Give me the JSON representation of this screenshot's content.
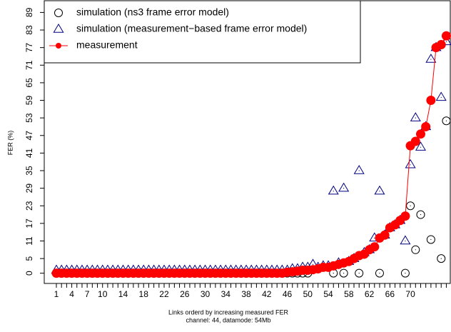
{
  "chart_data": {
    "type": "scatter",
    "xlabel": "Links orderd by increasing measured FER",
    "subtitle": "channel: 44, datamode: 54Mb",
    "ylabel": "FER (%)",
    "categories": [
      "1",
      null,
      null,
      "4",
      null,
      null,
      "7",
      null,
      null,
      "10",
      null,
      null,
      null,
      "14",
      null,
      null,
      null,
      "18",
      null,
      null,
      null,
      "22",
      null,
      null,
      null,
      "26",
      null,
      null,
      null,
      "30",
      null,
      null,
      null,
      "34",
      null,
      null,
      null,
      "38",
      null,
      null,
      null,
      "42",
      null,
      null,
      null,
      "46",
      null,
      null,
      null,
      "50",
      null,
      null,
      null,
      "54",
      null,
      null,
      null,
      "58",
      null,
      null,
      null,
      "62",
      null,
      null,
      null,
      "66",
      null,
      null,
      null,
      "70",
      null,
      null,
      null,
      null,
      null,
      null,
      null
    ],
    "ylim": [
      -3.5,
      93
    ],
    "yticks": [
      0,
      5,
      11,
      17,
      23,
      29,
      35,
      41,
      47,
      53,
      59,
      65,
      71,
      77,
      83,
      89
    ],
    "legend": "topleft",
    "series": [
      {
        "name": "simulation (ns3 frame error model)",
        "color": "#000000",
        "marker": "circle",
        "values": [
          0,
          0,
          0,
          0,
          0,
          0,
          0,
          0,
          0,
          0,
          0,
          0,
          0,
          0,
          0,
          0,
          0,
          0,
          0,
          0,
          0,
          0,
          0,
          0,
          0,
          0,
          0,
          0,
          0,
          0,
          0,
          0,
          0,
          0,
          0,
          0,
          0,
          0,
          0,
          0,
          0,
          0,
          0,
          0,
          0,
          0,
          0,
          0,
          0,
          0,
          1.2,
          1.5,
          2,
          2,
          0,
          3,
          0,
          4,
          5,
          0,
          6.5,
          8,
          9,
          0,
          13,
          15.5,
          16.5,
          18,
          0,
          23,
          8,
          20,
          50,
          11.5,
          77,
          5,
          52
        ]
      },
      {
        "name": "simulation (measurement−based frame error model)",
        "color": "#000080",
        "marker": "triangle",
        "values": [
          1,
          1,
          1,
          1,
          1,
          1,
          1,
          1,
          1,
          1,
          1,
          1,
          1,
          1,
          1,
          1,
          1,
          1,
          1,
          1,
          1,
          1,
          1,
          1,
          1,
          1,
          1,
          1,
          1,
          1,
          1,
          1,
          1,
          1,
          1,
          1,
          1,
          1,
          1,
          1,
          1,
          1,
          1,
          1,
          1,
          1,
          1.5,
          1.5,
          2,
          2,
          3,
          2,
          2.5,
          2.5,
          28,
          3.5,
          29,
          4,
          5,
          35,
          7,
          8,
          12,
          28,
          13,
          15.5,
          16.5,
          18,
          11,
          37,
          53,
          43,
          50,
          73,
          77,
          60,
          79
        ]
      },
      {
        "name": "measurement",
        "color": "#ff0000",
        "marker": "dot-line",
        "values": [
          0,
          0,
          0,
          0,
          0,
          0,
          0,
          0,
          0,
          0,
          0,
          0,
          0,
          0,
          0,
          0,
          0,
          0,
          0,
          0,
          0,
          0,
          0,
          0,
          0,
          0,
          0,
          0,
          0,
          0,
          0,
          0,
          0,
          0,
          0,
          0,
          0,
          0,
          0,
          0,
          0,
          0,
          0,
          0,
          0,
          0.3,
          0.5,
          0.7,
          1,
          1,
          1.2,
          1.5,
          2,
          2,
          2.5,
          3,
          3.5,
          4,
          5,
          6,
          6.5,
          8,
          9,
          12,
          13,
          15.5,
          16.5,
          18,
          19.5,
          43.5,
          45,
          47.5,
          50,
          59,
          77,
          78,
          81
        ]
      }
    ]
  }
}
